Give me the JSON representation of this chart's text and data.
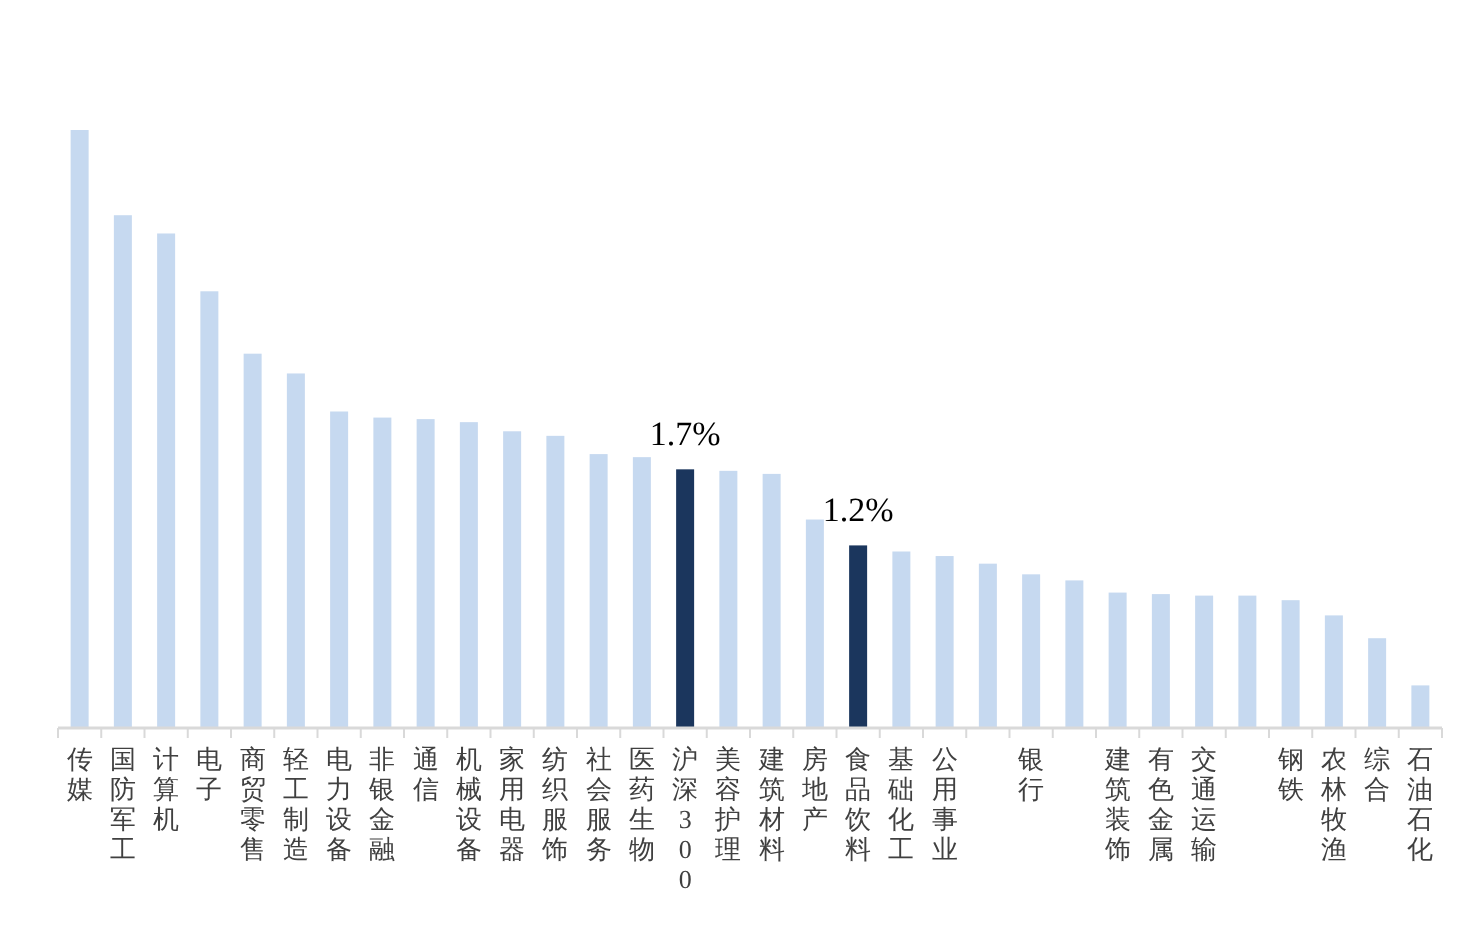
{
  "chart_data": {
    "type": "bar",
    "categories": [
      "传媒",
      "国防军工",
      "计算机",
      "电子",
      "商贸零售",
      "轻工制造",
      "电力设备",
      "非银金融",
      "通信",
      "机械设备",
      "家用电器",
      "纺织服饰",
      "社会服务",
      "医药生物",
      "沪深300",
      "美容护理",
      "建筑材料",
      "房地产",
      "食品饮料",
      "基础化工",
      "公用事业",
      null,
      "银行",
      null,
      "建筑装饰",
      "有色金属",
      "交通运输",
      null,
      "钢铁",
      "农林牧渔",
      "综合",
      "石油石化"
    ],
    "values": [
      3.93,
      3.37,
      3.25,
      2.87,
      2.46,
      2.33,
      2.08,
      2.04,
      2.03,
      2.01,
      1.95,
      1.92,
      1.8,
      1.78,
      1.7,
      1.69,
      1.67,
      1.37,
      1.2,
      1.16,
      1.13,
      1.08,
      1.01,
      0.97,
      0.89,
      0.88,
      0.87,
      0.87,
      0.84,
      0.74,
      0.59,
      0.28
    ],
    "colors": [
      "#c6d9f0",
      "#c6d9f0",
      "#c6d9f0",
      "#c6d9f0",
      "#c6d9f0",
      "#c6d9f0",
      "#c6d9f0",
      "#c6d9f0",
      "#c6d9f0",
      "#c6d9f0",
      "#c6d9f0",
      "#c6d9f0",
      "#c6d9f0",
      "#c6d9f0",
      "#1b365d",
      "#c6d9f0",
      "#c6d9f0",
      "#c6d9f0",
      "#1b365d",
      "#c6d9f0",
      "#c6d9f0",
      "#c6d9f0",
      "#c6d9f0",
      "#c6d9f0",
      "#c6d9f0",
      "#c6d9f0",
      "#c6d9f0",
      "#c6d9f0",
      "#c6d9f0",
      "#c6d9f0",
      "#c6d9f0",
      "#c6d9f0"
    ],
    "value_labels": [
      null,
      null,
      null,
      null,
      null,
      null,
      null,
      null,
      null,
      null,
      null,
      null,
      null,
      null,
      "1.7%",
      null,
      null,
      null,
      "1.2%",
      null,
      null,
      null,
      null,
      null,
      null,
      null,
      null,
      null,
      null,
      null,
      null,
      null
    ]
  }
}
